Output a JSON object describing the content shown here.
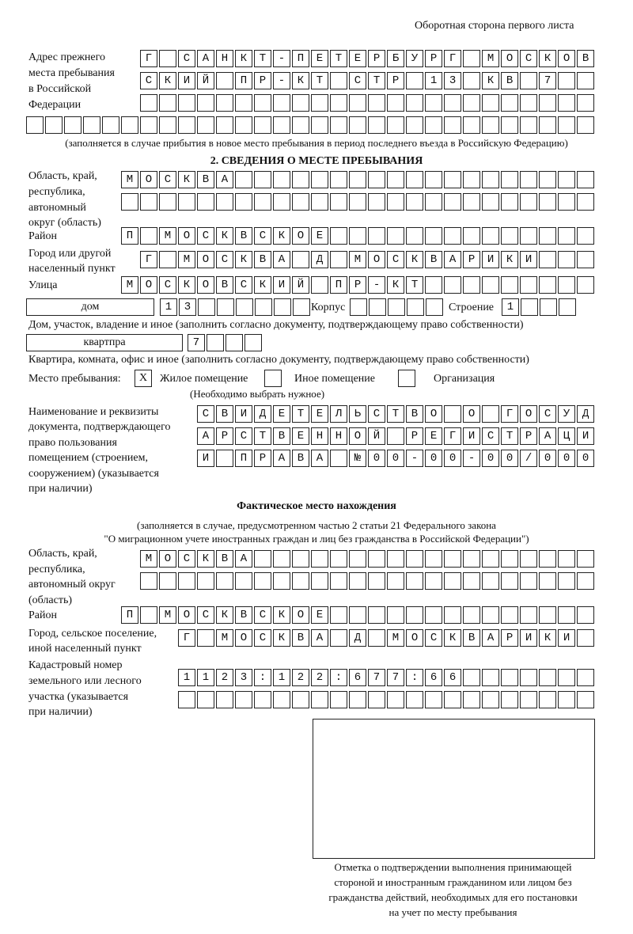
{
  "header": "Оборотная сторона первого листа",
  "prev_address": {
    "label": [
      "Адрес прежнего",
      "места пребывания",
      "в Российской",
      "Федерации"
    ],
    "rows": [
      "Г САНКТ-ПЕТЕРБУРГ МОСКОВ",
      "СКИЙ ПР-КТ СТР 13 КВ 7  ",
      "",
      "",
      ""
    ],
    "note": "(заполняется в случае прибытия в новое место пребывания в период последнего въезда в Российскую Федерацию)"
  },
  "section2": {
    "title": "2. СВЕДЕНИЯ О МЕСТЕ ПРЕБЫВАНИЯ",
    "region_label": [
      "Область, край,",
      "республика,",
      "автономный",
      "округ (область)"
    ],
    "region_rows": [
      "МОСКВА",
      ""
    ],
    "district_label": "Район",
    "district": "П МОСКВСКОЕ",
    "city_label": [
      "Город или другой",
      "населенный пункт"
    ],
    "city": "Г МОСКВА Д МОСКВАРИКИ",
    "street_label": "Улица",
    "street": "МОСКОВСКИЙ ПР-КТ",
    "house_type": "дом",
    "house": "13",
    "korpus_label": "Корпус",
    "korpus": "",
    "building_label": "Строение",
    "building": "1",
    "house_note": "Дом, участок, владение и иное (заполнить согласно документу, подтверждающему право собственности)",
    "flat_type": "квартпра",
    "flat": "7",
    "flat_note": "Квартира, комната, офис и иное (заполнить согласно документу, подтверждающему право собственности)",
    "stay_label": "Место пребывания:",
    "stay_options": [
      {
        "label": "Жилое помещение",
        "mark": "X"
      },
      {
        "label": "Иное помещение",
        "mark": ""
      },
      {
        "label": "Организация",
        "mark": ""
      }
    ],
    "stay_note": "(Необходимо выбрать нужное)",
    "doc_label": [
      "Наименование и реквизиты",
      "документа, подтверждающего",
      "право пользования",
      "помещением (строением,",
      "сооружением) (указывается",
      "при наличии)"
    ],
    "doc_rows": [
      "СВИДЕТЕЛЬСТВО О ГОСУД",
      "АРСТВЕННОЙ РЕГИСТРАЦИ",
      "И ПРАВА №00-00-00/000"
    ]
  },
  "actual": {
    "title": "Фактическое место нахождения",
    "note1": "(заполняется в случае, предусмотренном частью 2 статьи 21 Федерального закона",
    "note2": "\"О миграционном учете иностранных граждан и лиц без гражданства в Российской Федерации\")",
    "region_label": [
      "Область, край,",
      "республика,",
      "автономный округ",
      "(область)"
    ],
    "region_rows": [
      "МОСКВА",
      ""
    ],
    "district_label": "Район",
    "district": "П МОСКВСКОЕ",
    "city_label": [
      "Город, сельское поселение,",
      "иной населенный пункт"
    ],
    "city": "Г МОСКВА Д МОСКВАРИКИ",
    "cadastral_label": [
      "Кадастровый номер",
      "земельного или лесного",
      "участка (указывается",
      "при наличии)"
    ],
    "cadastral_rows": [
      "1123:122:677:66",
      ""
    ]
  },
  "confirmation": [
    "Отметка о подтверждении выполнения принимающей",
    "стороной и иностранным гражданином или лицом без",
    "гражданства действий, необходимых для его постановки",
    "на учет по месту пребывания"
  ]
}
